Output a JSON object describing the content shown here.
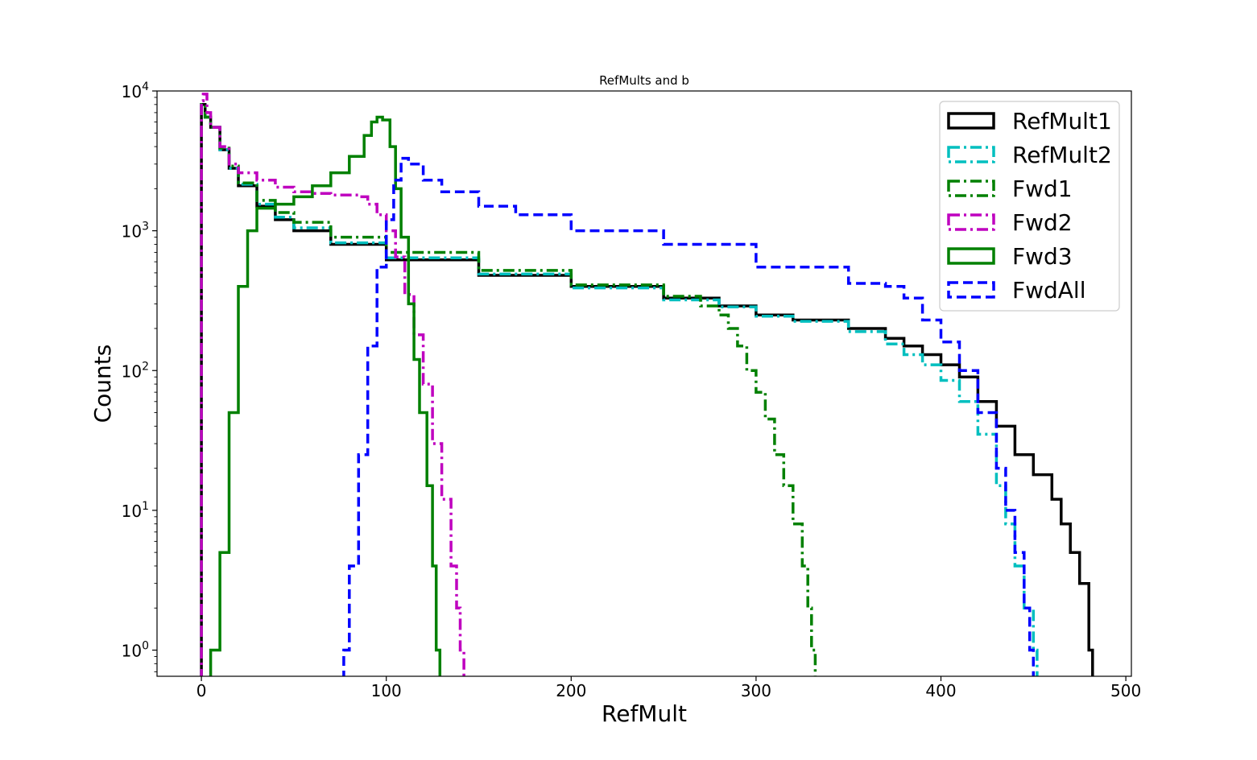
{
  "chart_data": {
    "type": "line",
    "title": "RefMults and b",
    "xlabel": "RefMult",
    "ylabel": "Counts",
    "xlim": [
      -24,
      503
    ],
    "ylim": [
      0.65,
      10000
    ],
    "yscale": "log",
    "grid": false,
    "legend_position": "top-right",
    "x_ticks": [
      0,
      100,
      200,
      300,
      400,
      500
    ],
    "x_tick_labels": [
      "0",
      "100",
      "200",
      "300",
      "400",
      "500"
    ],
    "y_ticks": [
      1,
      10,
      100,
      1000,
      10000
    ],
    "y_tick_labels": [
      {
        "base": "10",
        "exp": "0"
      },
      {
        "base": "10",
        "exp": "1"
      },
      {
        "base": "10",
        "exp": "2"
      },
      {
        "base": "10",
        "exp": "3"
      },
      {
        "base": "10",
        "exp": "4"
      }
    ],
    "series": [
      {
        "name": "RefMult1",
        "color": "#000000",
        "style": "solid",
        "points": [
          [
            0,
            8000
          ],
          [
            2,
            6500
          ],
          [
            5,
            5500
          ],
          [
            10,
            3800
          ],
          [
            15,
            2800
          ],
          [
            20,
            2100
          ],
          [
            30,
            1500
          ],
          [
            40,
            1200
          ],
          [
            50,
            1000
          ],
          [
            70,
            800
          ],
          [
            100,
            620
          ],
          [
            150,
            480
          ],
          [
            200,
            400
          ],
          [
            250,
            330
          ],
          [
            280,
            290
          ],
          [
            300,
            250
          ],
          [
            320,
            230
          ],
          [
            350,
            200
          ],
          [
            370,
            170
          ],
          [
            380,
            150
          ],
          [
            390,
            130
          ],
          [
            400,
            110
          ],
          [
            410,
            90
          ],
          [
            420,
            60
          ],
          [
            430,
            40
          ],
          [
            440,
            25
          ],
          [
            450,
            18
          ],
          [
            460,
            12
          ],
          [
            465,
            8
          ],
          [
            470,
            5
          ],
          [
            475,
            3
          ],
          [
            480,
            1
          ]
        ]
      },
      {
        "name": "RefMult2",
        "color": "#00bfbf",
        "style": "dashdot",
        "points": [
          [
            0,
            8000
          ],
          [
            2,
            6500
          ],
          [
            5,
            5500
          ],
          [
            10,
            3800
          ],
          [
            15,
            2800
          ],
          [
            20,
            2150
          ],
          [
            30,
            1550
          ],
          [
            40,
            1250
          ],
          [
            50,
            1050
          ],
          [
            70,
            820
          ],
          [
            100,
            640
          ],
          [
            150,
            490
          ],
          [
            200,
            390
          ],
          [
            250,
            320
          ],
          [
            280,
            285
          ],
          [
            300,
            245
          ],
          [
            320,
            225
          ],
          [
            350,
            190
          ],
          [
            370,
            155
          ],
          [
            380,
            130
          ],
          [
            390,
            110
          ],
          [
            400,
            85
          ],
          [
            410,
            60
          ],
          [
            420,
            35
          ],
          [
            430,
            15
          ],
          [
            435,
            8
          ],
          [
            440,
            4
          ],
          [
            445,
            2
          ],
          [
            450,
            1
          ]
        ]
      },
      {
        "name": "Fwd1",
        "color": "#008000",
        "style": "dashdot",
        "points": [
          [
            0,
            8000
          ],
          [
            2,
            6500
          ],
          [
            5,
            5500
          ],
          [
            10,
            3900
          ],
          [
            15,
            2900
          ],
          [
            20,
            2200
          ],
          [
            30,
            1650
          ],
          [
            40,
            1350
          ],
          [
            50,
            1150
          ],
          [
            70,
            900
          ],
          [
            100,
            700
          ],
          [
            150,
            520
          ],
          [
            200,
            410
          ],
          [
            250,
            340
          ],
          [
            270,
            290
          ],
          [
            280,
            250
          ],
          [
            285,
            200
          ],
          [
            290,
            150
          ],
          [
            295,
            100
          ],
          [
            300,
            70
          ],
          [
            305,
            45
          ],
          [
            310,
            25
          ],
          [
            315,
            15
          ],
          [
            320,
            8
          ],
          [
            325,
            4
          ],
          [
            328,
            2
          ],
          [
            330,
            1
          ]
        ]
      },
      {
        "name": "Fwd2",
        "color": "#bf00bf",
        "style": "dashdot",
        "points": [
          [
            0,
            8500
          ],
          [
            1,
            9500
          ],
          [
            3,
            7000
          ],
          [
            5,
            5500
          ],
          [
            10,
            4000
          ],
          [
            15,
            3000
          ],
          [
            20,
            2600
          ],
          [
            30,
            2300
          ],
          [
            40,
            2050
          ],
          [
            50,
            1900
          ],
          [
            60,
            1850
          ],
          [
            70,
            1800
          ],
          [
            80,
            1800
          ],
          [
            85,
            1750
          ],
          [
            90,
            1550
          ],
          [
            95,
            1300
          ],
          [
            100,
            1000
          ],
          [
            105,
            650
          ],
          [
            110,
            350
          ],
          [
            115,
            180
          ],
          [
            120,
            80
          ],
          [
            125,
            30
          ],
          [
            130,
            12
          ],
          [
            135,
            4
          ],
          [
            138,
            2
          ],
          [
            140,
            1
          ]
        ]
      },
      {
        "name": "Fwd3",
        "color": "#008000",
        "style": "solid",
        "points": [
          [
            5,
            1
          ],
          [
            10,
            5
          ],
          [
            15,
            50
          ],
          [
            20,
            400
          ],
          [
            25,
            1000
          ],
          [
            30,
            1450
          ],
          [
            40,
            1550
          ],
          [
            50,
            1750
          ],
          [
            60,
            2100
          ],
          [
            70,
            2600
          ],
          [
            80,
            3400
          ],
          [
            88,
            4800
          ],
          [
            92,
            6000
          ],
          [
            95,
            6500
          ],
          [
            98,
            6200
          ],
          [
            102,
            4000
          ],
          [
            105,
            2000
          ],
          [
            108,
            900
          ],
          [
            112,
            300
          ],
          [
            115,
            120
          ],
          [
            118,
            50
          ],
          [
            122,
            15
          ],
          [
            125,
            4
          ],
          [
            127,
            1
          ]
        ]
      },
      {
        "name": "FwdAll",
        "color": "#0000ff",
        "style": "dashed",
        "points": [
          [
            77,
            1
          ],
          [
            80,
            4
          ],
          [
            85,
            25
          ],
          [
            90,
            150
          ],
          [
            95,
            550
          ],
          [
            100,
            1200
          ],
          [
            104,
            2300
          ],
          [
            108,
            3300
          ],
          [
            112,
            3000
          ],
          [
            120,
            2300
          ],
          [
            130,
            1900
          ],
          [
            150,
            1500
          ],
          [
            170,
            1300
          ],
          [
            200,
            1000
          ],
          [
            250,
            800
          ],
          [
            300,
            550
          ],
          [
            350,
            420
          ],
          [
            370,
            400
          ],
          [
            380,
            330
          ],
          [
            390,
            230
          ],
          [
            400,
            160
          ],
          [
            410,
            100
          ],
          [
            420,
            50
          ],
          [
            430,
            20
          ],
          [
            435,
            10
          ],
          [
            440,
            5
          ],
          [
            445,
            2
          ],
          [
            448,
            1
          ]
        ]
      }
    ]
  }
}
